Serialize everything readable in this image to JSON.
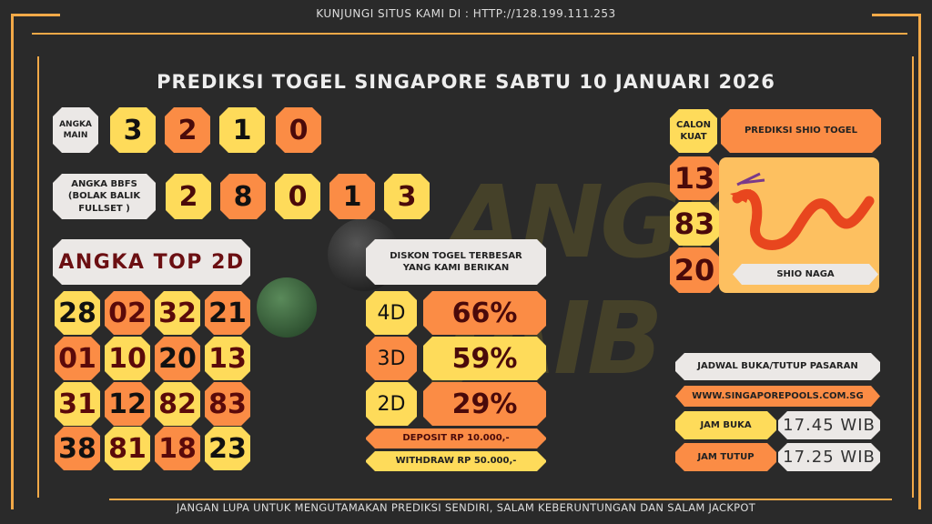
{
  "header": {
    "visit": "KUNJUNGI SITUS KAMI DI : HTTP://128.199.111.253",
    "title": "PREDIKSI TOGEL SINGAPORE SABTU 10 JANUARI 2026"
  },
  "watermark": "ANGKA JAIB",
  "angka_main": {
    "label": "ANGKA MAIN",
    "values": [
      "3",
      "2",
      "1",
      "0"
    ]
  },
  "bbfs": {
    "label": "ANGKA BBFS (BOLAK BALIK FULLSET )",
    "values": [
      "2",
      "8",
      "0",
      "1",
      "3"
    ]
  },
  "top2d": {
    "label": "ANGKA TOP 2D",
    "values": [
      [
        "28",
        "02",
        "32",
        "21"
      ],
      [
        "01",
        "10",
        "20",
        "13"
      ],
      [
        "31",
        "12",
        "82",
        "83"
      ],
      [
        "38",
        "81",
        "18",
        "23"
      ]
    ]
  },
  "diskon": {
    "label": "DISKON TOGEL TERBESAR YANG KAMI BERIKAN",
    "rows": [
      {
        "type": "4D",
        "value": "66%"
      },
      {
        "type": "3D",
        "value": "59%"
      },
      {
        "type": "2D",
        "value": "29%"
      }
    ],
    "deposit": "DEPOSIT RP 10.000,-",
    "withdraw": "WITHDRAW RP 50.000,-"
  },
  "shio": {
    "calon_label": "CALON KUAT",
    "title": "PREDIKSI SHIO TOGEL",
    "numbers": [
      "13",
      "83",
      "20"
    ],
    "name": "SHIO NAGA"
  },
  "jadwal": {
    "title": "JADWAL BUKA/TUTUP PASARAN",
    "website": "WWW.SINGAPOREPOOLS.COM.SG",
    "buka_label": "JAM BUKA",
    "buka": "17.45 WIB",
    "tutup_label": "JAM TUTUP",
    "tutup": "17.25 WIB"
  },
  "footer": "JANGAN LUPA UNTUK MENGUTAMAKAN PREDIKSI SENDIRI, SALAM KEBERUNTUNGAN DAN SALAM JACKPOT",
  "colors": {
    "yellow": "#fedb5a",
    "orange": "#fb8c45",
    "light": "#ebe8e6",
    "frame": "#f2a948",
    "background": "#2a2a2a"
  }
}
